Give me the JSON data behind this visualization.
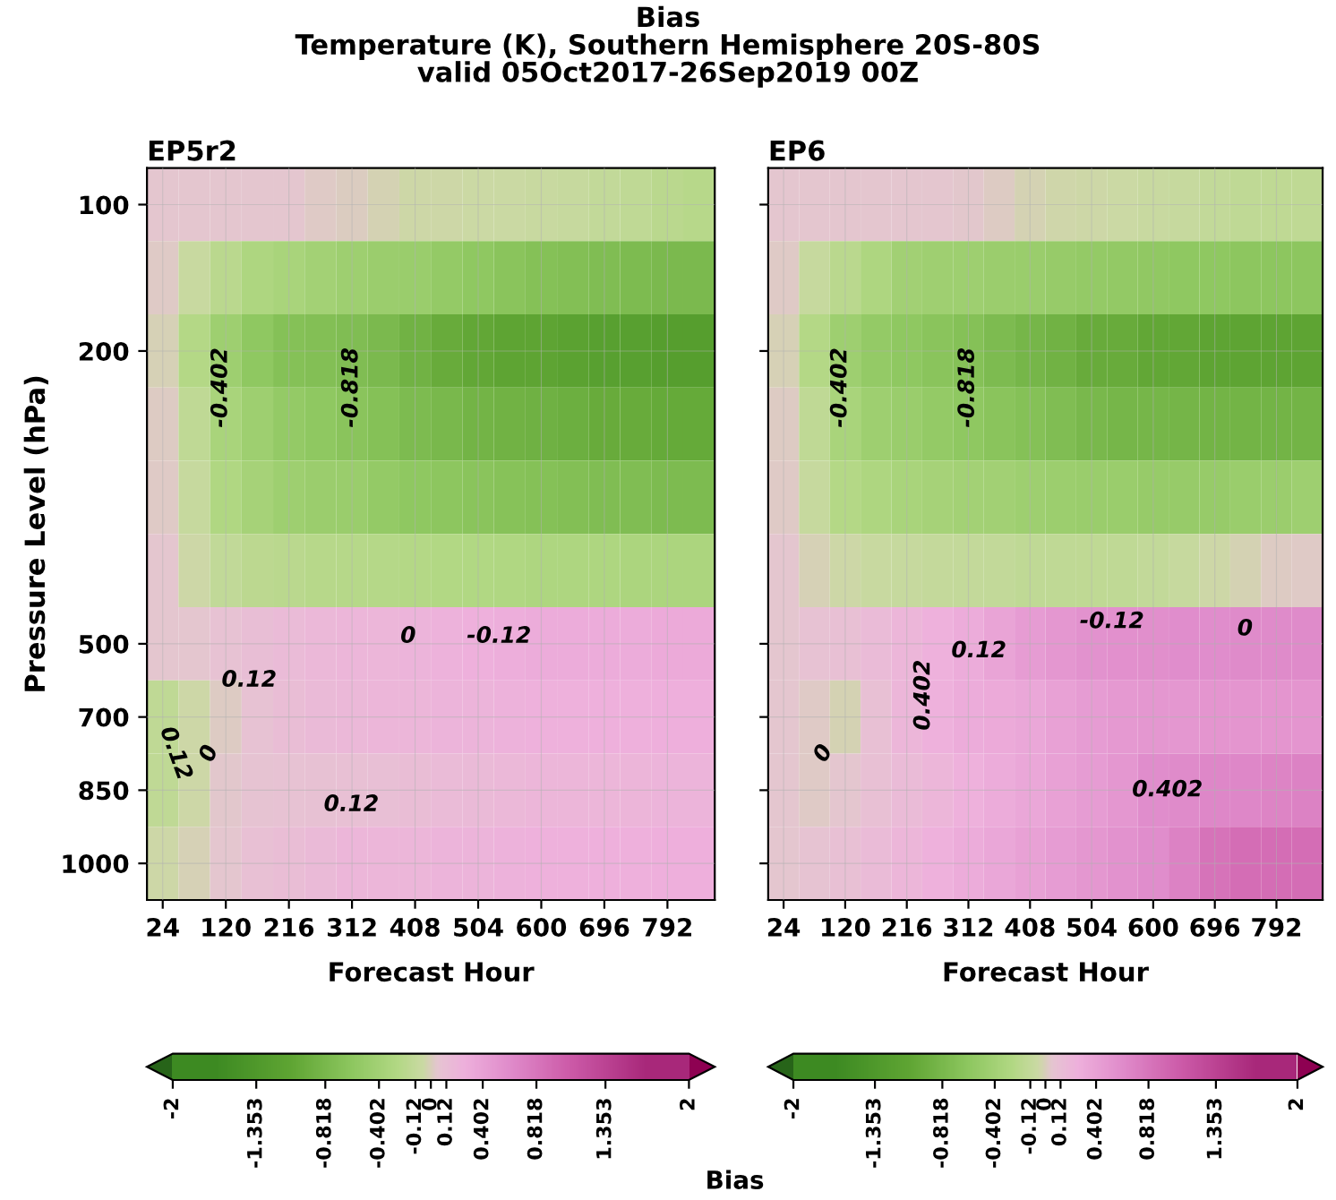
{
  "chart_data": [
    {
      "type": "heatmap",
      "title": "Bias\nTemperature (K), Southern Hemisphere 20S-80S\nvalid 05Oct2017-26Sep2019 00Z",
      "subtitle": "EP5r2",
      "xlabel": "Forecast Hour",
      "ylabel": "Pressure Level (hPa)",
      "clabel": "Bias",
      "categories": [
        "24",
        null,
        "120",
        null,
        "216",
        null,
        "312",
        null,
        "408",
        null,
        "504",
        null,
        "600",
        null,
        "696",
        null,
        "792",
        null
      ],
      "y_categories": [
        "100",
        null,
        "200",
        null,
        null,
        null,
        "500",
        "700",
        "850",
        "1000"
      ],
      "cells": [
        [
          0.05,
          0.05,
          0.05,
          0.05,
          0.05,
          0.03,
          0.01,
          -0.02,
          -0.05,
          -0.05,
          -0.06,
          -0.07,
          -0.08,
          -0.1,
          -0.13,
          -0.15,
          -0.2,
          -0.22
        ],
        [
          0.03,
          -0.08,
          -0.2,
          -0.3,
          -0.35,
          -0.4,
          -0.45,
          -0.48,
          -0.5,
          -0.55,
          -0.6,
          -0.65,
          -0.7,
          -0.72,
          -0.75,
          -0.78,
          -0.8,
          -0.8
        ],
        [
          -0.01,
          -0.25,
          -0.45,
          -0.6,
          -0.7,
          -0.72,
          -0.75,
          -0.8,
          -0.9,
          -1.0,
          -1.05,
          -1.1,
          -1.1,
          -1.15,
          -1.2,
          -1.2,
          -1.25,
          -1.25
        ],
        [
          0.02,
          -0.15,
          -0.35,
          -0.45,
          -0.55,
          -0.6,
          -0.65,
          -0.7,
          -0.78,
          -0.82,
          -0.88,
          -0.9,
          -0.92,
          -0.95,
          -1.0,
          -1.0,
          -1.02,
          -1.02
        ],
        [
          0.03,
          -0.1,
          -0.28,
          -0.38,
          -0.45,
          -0.48,
          -0.5,
          -0.55,
          -0.6,
          -0.62,
          -0.65,
          -0.68,
          -0.7,
          -0.72,
          -0.75,
          -0.75,
          -0.78,
          -0.78
        ],
        [
          0.05,
          -0.05,
          -0.14,
          -0.18,
          -0.2,
          -0.22,
          -0.23,
          -0.24,
          -0.25,
          -0.26,
          -0.27,
          -0.28,
          -0.3,
          -0.3,
          -0.3,
          -0.32,
          -0.32,
          -0.32
        ],
        [
          0.05,
          0.05,
          0.08,
          0.12,
          0.15,
          0.18,
          0.2,
          0.2,
          0.22,
          0.24,
          0.26,
          0.28,
          0.3,
          0.3,
          0.3,
          0.3,
          0.32,
          0.32
        ],
        [
          -0.15,
          -0.05,
          0.02,
          0.08,
          0.13,
          0.16,
          0.18,
          0.2,
          0.2,
          0.22,
          0.22,
          0.24,
          0.25,
          0.25,
          0.26,
          0.26,
          0.27,
          0.27
        ],
        [
          -0.15,
          -0.05,
          0.04,
          0.07,
          0.08,
          0.09,
          0.1,
          0.11,
          0.13,
          0.15,
          0.16,
          0.18,
          0.2,
          0.2,
          0.2,
          0.21,
          0.22,
          0.22
        ],
        [
          -0.05,
          -0.01,
          0.05,
          0.1,
          0.13,
          0.16,
          0.2,
          0.2,
          0.2,
          0.22,
          0.22,
          0.24,
          0.25,
          0.25,
          0.26,
          0.26,
          0.27,
          0.27
        ]
      ],
      "clim": [
        -2,
        2
      ],
      "cticks": [
        -2,
        -1.353,
        -0.818,
        -0.402,
        -0.12,
        0,
        0.12,
        0.402,
        0.818,
        1.353,
        2
      ],
      "colors": [
        "#276419",
        "#3d8a22",
        "#5fa533",
        "#8ec760",
        "#b2d884",
        "#cbd9a4",
        "#e6c4d2",
        "#eeb0dc",
        "#e08ccb",
        "#cc5aa8",
        "#a8287a",
        "#8e0152"
      ],
      "annotations": [
        "-0.402",
        "-0.818",
        "-0.12",
        "0",
        "0.12",
        "0.12",
        "0",
        "0.12"
      ],
      "grid": true
    },
    {
      "type": "heatmap",
      "subtitle": "EP6",
      "xlabel": "Forecast Hour",
      "categories": [
        "24",
        null,
        "120",
        null,
        "216",
        null,
        "312",
        null,
        "408",
        null,
        "504",
        null,
        "600",
        null,
        "696",
        null,
        "792",
        null
      ],
      "y_categories": [
        "100",
        null,
        "200",
        null,
        null,
        null,
        "500",
        "700",
        "850",
        "1000"
      ],
      "cells": [
        [
          0.05,
          0.05,
          0.05,
          0.05,
          0.05,
          0.05,
          0.04,
          0.02,
          -0.02,
          -0.04,
          -0.05,
          -0.06,
          -0.08,
          -0.1,
          -0.13,
          -0.15,
          -0.16,
          -0.16
        ],
        [
          0.03,
          -0.1,
          -0.2,
          -0.3,
          -0.42,
          -0.44,
          -0.45,
          -0.48,
          -0.5,
          -0.52,
          -0.55,
          -0.56,
          -0.58,
          -0.6,
          -0.6,
          -0.62,
          -0.62,
          -0.62
        ],
        [
          -0.01,
          -0.25,
          -0.45,
          -0.55,
          -0.6,
          -0.65,
          -0.7,
          -0.78,
          -0.85,
          -0.9,
          -1.0,
          -1.0,
          -1.05,
          -1.05,
          -1.1,
          -1.1,
          -1.1,
          -1.1
        ],
        [
          0.02,
          -0.15,
          -0.35,
          -0.45,
          -0.5,
          -0.55,
          -0.6,
          -0.65,
          -0.7,
          -0.75,
          -0.82,
          -0.85,
          -0.85,
          -0.86,
          -0.88,
          -0.88,
          -0.88,
          -0.88
        ],
        [
          0.03,
          -0.1,
          -0.25,
          -0.3,
          -0.35,
          -0.38,
          -0.4,
          -0.42,
          -0.45,
          -0.47,
          -0.5,
          -0.5,
          -0.52,
          -0.52,
          -0.52,
          -0.5,
          -0.48,
          -0.45
        ],
        [
          0.05,
          -0.01,
          -0.05,
          -0.08,
          -0.1,
          -0.11,
          -0.12,
          -0.13,
          -0.15,
          -0.15,
          -0.16,
          -0.15,
          -0.13,
          -0.1,
          -0.05,
          -0.02,
          0.02,
          0.03
        ],
        [
          0.05,
          0.08,
          0.1,
          0.15,
          0.2,
          0.25,
          0.3,
          0.38,
          0.45,
          0.5,
          0.55,
          0.57,
          0.58,
          0.6,
          0.6,
          0.62,
          0.62,
          0.62
        ],
        [
          0.05,
          0.03,
          -0.02,
          0.1,
          0.2,
          0.25,
          0.3,
          0.32,
          0.35,
          0.4,
          0.45,
          0.48,
          0.5,
          0.5,
          0.52,
          0.52,
          0.52,
          0.52
        ],
        [
          0.05,
          0.03,
          0.05,
          0.1,
          0.15,
          0.2,
          0.25,
          0.3,
          0.35,
          0.4,
          0.45,
          0.5,
          0.6,
          0.62,
          0.65,
          0.65,
          0.68,
          0.7
        ],
        [
          0.05,
          0.07,
          0.1,
          0.15,
          0.2,
          0.25,
          0.3,
          0.35,
          0.4,
          0.45,
          0.5,
          0.55,
          0.6,
          0.7,
          0.85,
          0.9,
          0.9,
          0.9
        ]
      ],
      "clim": [
        -2,
        2
      ],
      "cticks": [
        -2,
        -1.353,
        -0.818,
        -0.402,
        -0.12,
        0,
        0.12,
        0.402,
        0.818,
        1.353,
        2
      ],
      "colors": [
        "#276419",
        "#3d8a22",
        "#5fa533",
        "#8ec760",
        "#b2d884",
        "#cbd9a4",
        "#e6c4d2",
        "#eeb0dc",
        "#e08ccb",
        "#cc5aa8",
        "#a8287a",
        "#8e0152"
      ],
      "annotations": [
        "-0.402",
        "-0.818",
        "-0.12",
        "0",
        "0.12",
        "0.402",
        "0",
        "0.402"
      ],
      "grid": true,
      "tick_labels": "x"
    }
  ]
}
